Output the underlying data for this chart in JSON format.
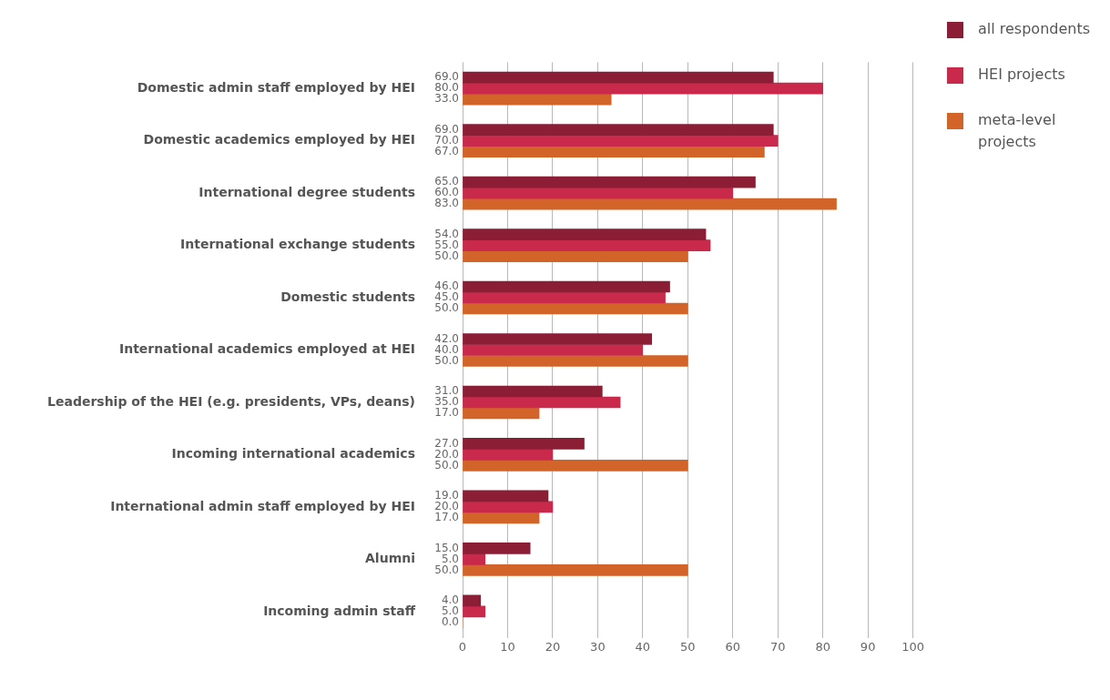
{
  "chart_data": {
    "type": "bar",
    "orientation": "horizontal",
    "categories": [
      "Domestic admin staff employed by HEI",
      "Domestic academics employed by HEI",
      "International degree students",
      "International exchange students",
      "Domestic students",
      "International academics employed at HEI",
      "Leadership of the HEI (e.g. presidents, VPs, deans)",
      "Incoming international academics",
      "International admin staff employed by HEI",
      "Alumni",
      "Incoming admin staff"
    ],
    "series": [
      {
        "name": "all respondents",
        "color": "#8b1e35",
        "values": [
          69,
          69,
          65,
          54,
          46,
          42,
          31,
          27,
          19,
          15,
          4
        ],
        "value_labels": [
          "69.0",
          "69.0",
          "65.0",
          "54.0",
          "46.0",
          "42.0",
          "31.0",
          "27.0",
          "19.0",
          "15.0",
          "4.0"
        ]
      },
      {
        "name": "HEI projects",
        "color": "#c92a4b",
        "values": [
          80,
          70,
          60,
          55,
          45,
          40,
          35,
          20,
          20,
          5,
          5
        ],
        "value_labels": [
          "80.0",
          "70.0",
          "60.0",
          "55.0",
          "45.0",
          "40.0",
          "35.0",
          "20.0",
          "20.0",
          "5.0",
          "5.0"
        ]
      },
      {
        "name": "meta-level projects",
        "color": "#d2642a",
        "values": [
          33,
          67,
          83,
          50,
          50,
          50,
          17,
          50,
          17,
          50,
          0
        ],
        "value_labels": [
          "33.0",
          "67.0",
          "83.0",
          "50.0",
          "50.0",
          "50.0",
          "17.0",
          "50.0",
          "17.0",
          "50.0",
          "0.0"
        ]
      }
    ],
    "xlim": [
      0,
      100
    ],
    "xticks": [
      0,
      10,
      20,
      30,
      40,
      50,
      60,
      70,
      80,
      90,
      100
    ],
    "grid": "x",
    "legend": "top right"
  }
}
